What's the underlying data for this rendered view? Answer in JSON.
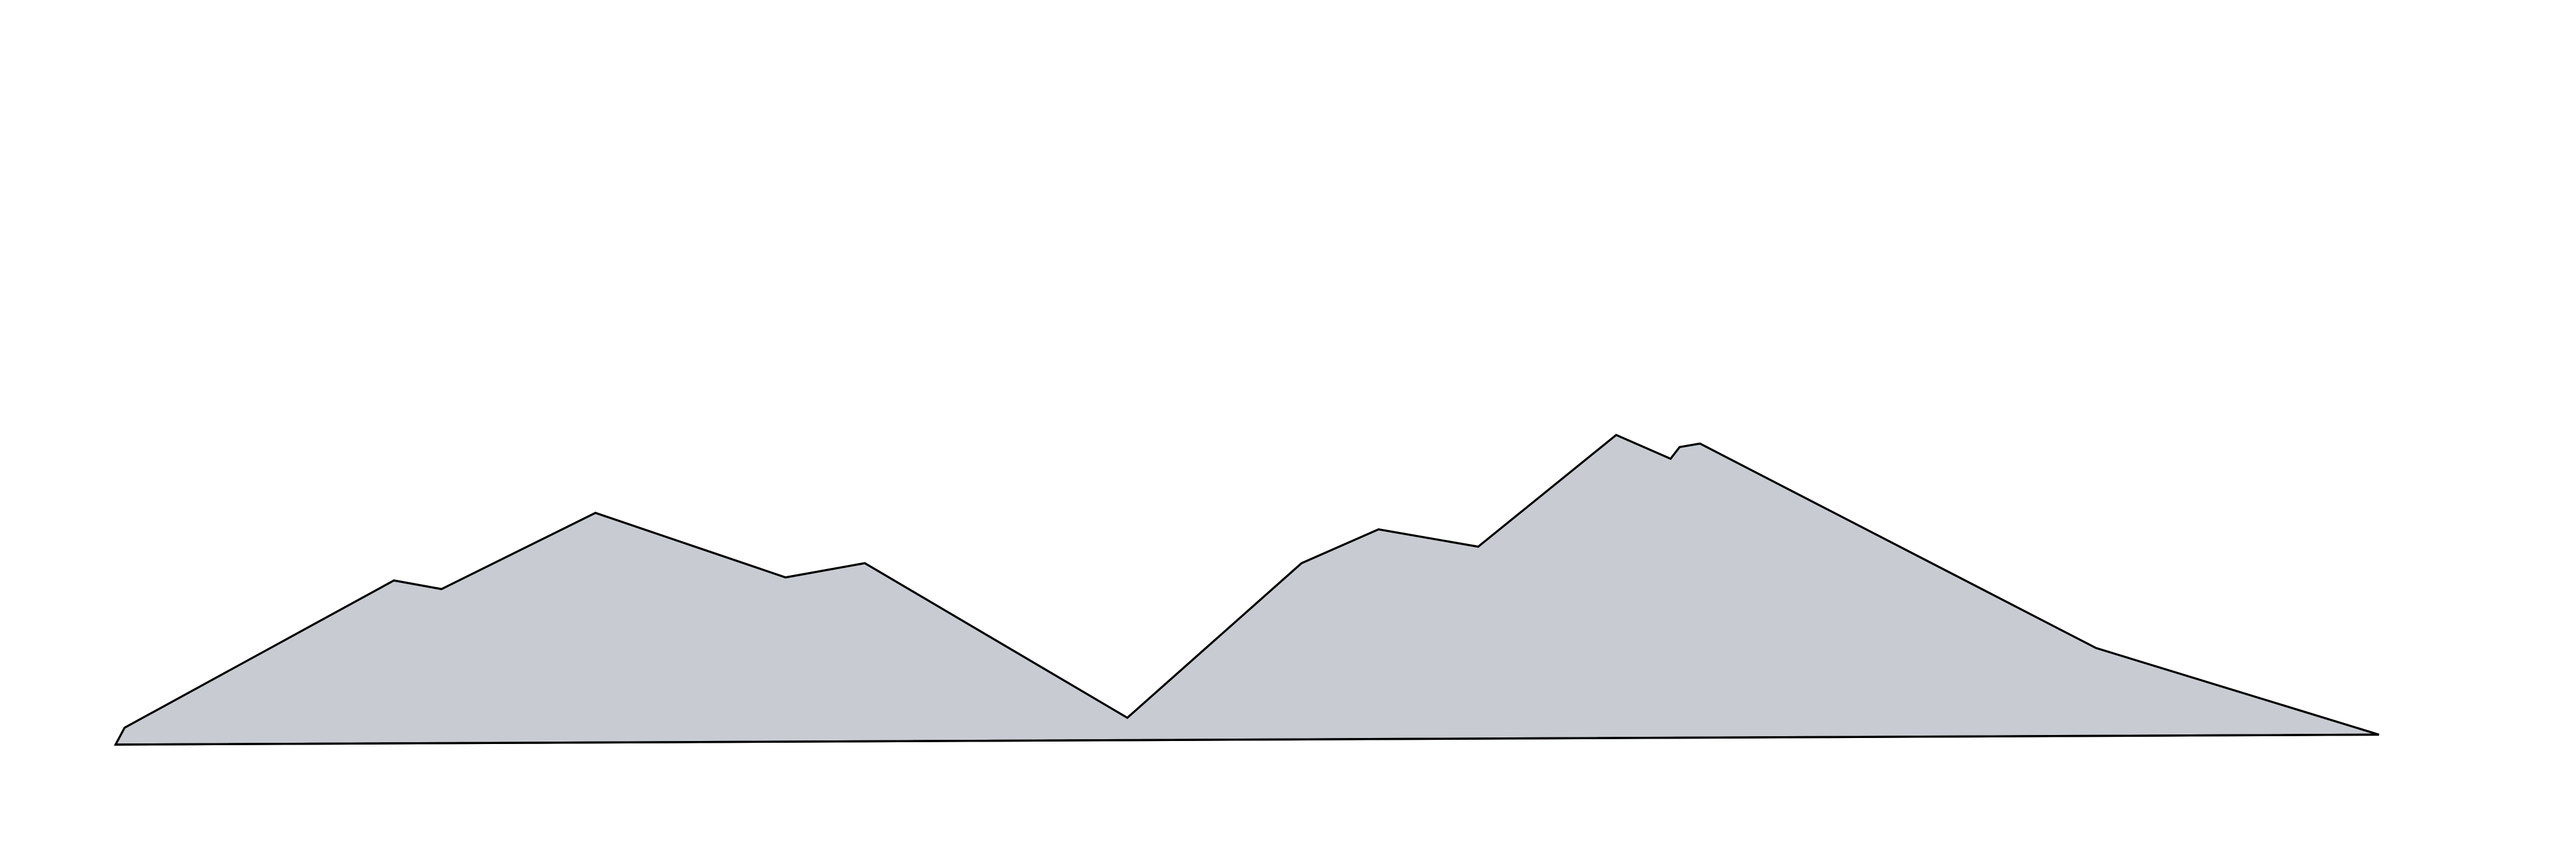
{
  "chart_data": {
    "type": "area",
    "title": "",
    "xlabel": "",
    "ylabel": "",
    "grid": false,
    "legend": "none",
    "fill_color": "#c8ccd2",
    "stroke_color": "#000000",
    "xlim": [
      0,
      1
    ],
    "ylim": [
      0,
      1
    ],
    "outline": [
      {
        "x": 0.0,
        "y": 0.0
      },
      {
        "x": 0.004,
        "y": 0.039
      },
      {
        "x": 0.123,
        "y": 0.379
      },
      {
        "x": 0.144,
        "y": 0.359
      },
      {
        "x": 0.212,
        "y": 0.535
      },
      {
        "x": 0.296,
        "y": 0.386
      },
      {
        "x": 0.331,
        "y": 0.419
      },
      {
        "x": 0.447,
        "y": 0.062
      },
      {
        "x": 0.524,
        "y": 0.419
      },
      {
        "x": 0.558,
        "y": 0.497
      },
      {
        "x": 0.602,
        "y": 0.457
      },
      {
        "x": 0.663,
        "y": 0.715
      },
      {
        "x": 0.687,
        "y": 0.66
      },
      {
        "x": 0.691,
        "y": 0.687
      },
      {
        "x": 0.7,
        "y": 0.695
      },
      {
        "x": 0.875,
        "y": 0.223
      },
      {
        "x": 1.0,
        "y": 0.023
      }
    ]
  }
}
